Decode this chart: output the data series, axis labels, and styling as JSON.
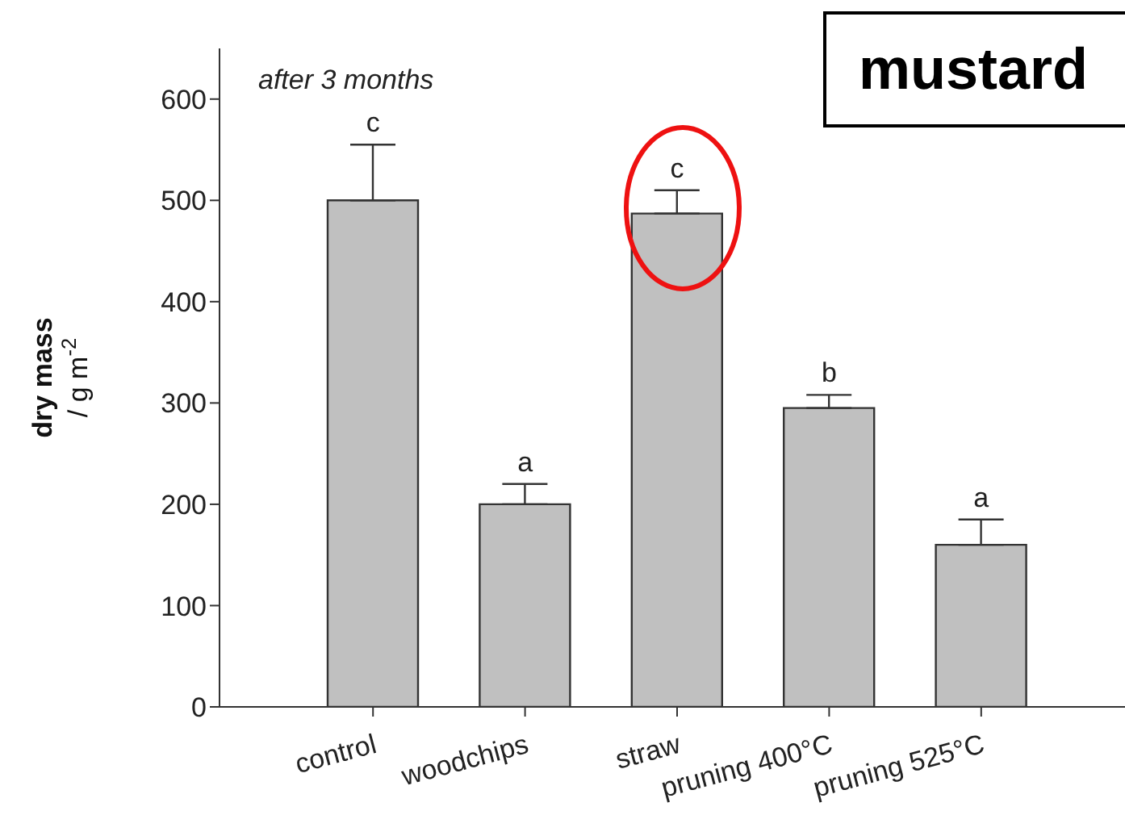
{
  "chart_data": {
    "type": "bar",
    "title": "mustard",
    "ylabel": "dry mass\n/ g m$^{-2}$",
    "categories": [
      "control",
      "woodchips",
      "straw",
      "pruning 400°C",
      "pruning 525°C"
    ],
    "values": [
      500,
      200,
      487,
      295,
      160
    ],
    "color": "#c0c0c0",
    "errors": [
      [
        500,
        555
      ],
      [
        200,
        220
      ],
      [
        487,
        510
      ],
      [
        295,
        308
      ],
      [
        160,
        185
      ]
    ],
    "ylim": [
      0,
      650
    ],
    "yticks": [
      0,
      100,
      200,
      300,
      400,
      500,
      600
    ],
    "annotations": [
      "after 3 months",
      {
        "text": "c",
        "x": "control",
        "y": 555
      },
      {
        "text": "a",
        "x": "woodchips",
        "y": 220
      },
      {
        "text": "c",
        "x": "straw",
        "y": 510
      },
      {
        "text": "b",
        "x": "pruning 400°C",
        "y": 308
      },
      {
        "text": "a",
        "x": "pruning 525°C",
        "y": 185
      }
    ]
  }
}
